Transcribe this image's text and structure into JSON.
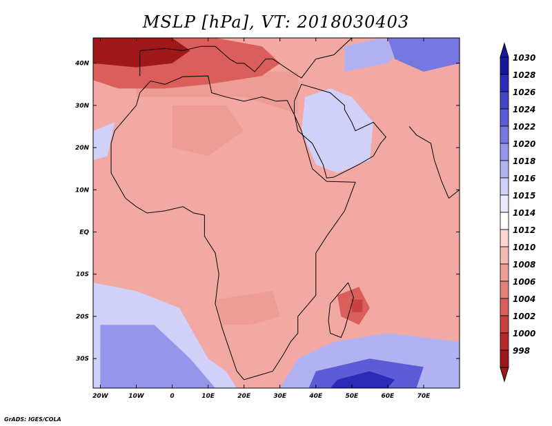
{
  "title": "MSLP [hPa], VT: 2018030403",
  "footer": "GrADS: IGES/COLA",
  "map": {
    "lon_range": [
      -22,
      80
    ],
    "lat_range": [
      -37,
      46
    ],
    "lat_ticks": [
      {
        "lat": 40,
        "label": "40N"
      },
      {
        "lat": 30,
        "label": "30N"
      },
      {
        "lat": 20,
        "label": "20N"
      },
      {
        "lat": 10,
        "label": "10N"
      },
      {
        "lat": 0,
        "label": "EQ"
      },
      {
        "lat": -10,
        "label": "10S"
      },
      {
        "lat": -20,
        "label": "20S"
      },
      {
        "lat": -30,
        "label": "30S"
      }
    ],
    "lon_ticks": [
      {
        "lon": -20,
        "label": "20W"
      },
      {
        "lon": -10,
        "label": "10W"
      },
      {
        "lon": 0,
        "label": "0"
      },
      {
        "lon": 10,
        "label": "10E"
      },
      {
        "lon": 20,
        "label": "20E"
      },
      {
        "lon": 30,
        "label": "30E"
      },
      {
        "lon": 40,
        "label": "40E"
      },
      {
        "lon": 50,
        "label": "50E"
      },
      {
        "lon": 60,
        "label": "60E"
      },
      {
        "lon": 70,
        "label": "70E"
      }
    ],
    "background_color": "#f3a9a3"
  },
  "colorbar": {
    "levels": [
      "1030",
      "1028",
      "1026",
      "1024",
      "1022",
      "1020",
      "1018",
      "1016",
      "1015",
      "1014",
      "1012",
      "1010",
      "1008",
      "1006",
      "1004",
      "1002",
      "1000",
      "998"
    ],
    "colors": [
      "#16169e",
      "#2b2bb8",
      "#4444c8",
      "#5c5cd6",
      "#7777e2",
      "#9595ec",
      "#b2b2f2",
      "#d0d0f8",
      "#ebebfc",
      "#ffffff",
      "#fbd6d3",
      "#f6b9b3",
      "#ee9d96",
      "#e57f79",
      "#da5f5b",
      "#cb413f",
      "#b72a2a",
      "#a11818"
    ]
  },
  "regions": [
    {
      "name": "north-africa-low",
      "color": "#ee9d96",
      "pts": [
        [
          -10,
          32
        ],
        [
          20,
          32
        ],
        [
          35,
          28
        ],
        [
          35,
          38
        ],
        [
          -10,
          38
        ]
      ]
    },
    {
      "name": "mediterranean-low",
      "color": "#da5f5b",
      "pts": [
        [
          -22,
          46
        ],
        [
          12,
          46
        ],
        [
          25,
          44
        ],
        [
          30,
          40
        ],
        [
          25,
          37
        ],
        [
          10,
          35
        ],
        [
          -2,
          34
        ],
        [
          -15,
          34
        ],
        [
          -22,
          36
        ]
      ]
    },
    {
      "name": "iberia-core-low",
      "color": "#a11818",
      "pts": [
        [
          -22,
          46
        ],
        [
          0,
          46
        ],
        [
          5,
          43
        ],
        [
          0,
          40
        ],
        [
          -10,
          39
        ],
        [
          -22,
          40
        ]
      ]
    },
    {
      "name": "sahara-low",
      "color": "#ee9d96",
      "pts": [
        [
          0,
          30
        ],
        [
          15,
          30
        ],
        [
          20,
          24
        ],
        [
          10,
          18
        ],
        [
          0,
          20
        ]
      ]
    },
    {
      "name": "arabia-high",
      "color": "#9595ec",
      "pts": [
        [
          40,
          28
        ],
        [
          48,
          30
        ],
        [
          52,
          26
        ],
        [
          54,
          22
        ],
        [
          50,
          18
        ],
        [
          44,
          17
        ],
        [
          40,
          22
        ]
      ]
    },
    {
      "name": "arabia-high-edge",
      "color": "#d0d0f8",
      "pts": [
        [
          37,
          32
        ],
        [
          44,
          34
        ],
        [
          50,
          32
        ],
        [
          56,
          26
        ],
        [
          55,
          17
        ],
        [
          46,
          14
        ],
        [
          40,
          16
        ],
        [
          36,
          24
        ]
      ]
    },
    {
      "name": "turkey-high",
      "color": "#b2b2f2",
      "pts": [
        [
          48,
          38
        ],
        [
          60,
          40
        ],
        [
          64,
          44
        ],
        [
          58,
          46
        ],
        [
          48,
          44
        ]
      ]
    },
    {
      "name": "iran-high",
      "color": "#7777e2",
      "pts": [
        [
          60,
          46
        ],
        [
          80,
          46
        ],
        [
          80,
          40
        ],
        [
          70,
          38
        ],
        [
          62,
          41
        ]
      ]
    },
    {
      "name": "westafrica-high",
      "color": "#d0d0f8",
      "pts": [
        [
          -22,
          24
        ],
        [
          -16,
          26
        ],
        [
          -18,
          18
        ],
        [
          -22,
          17
        ]
      ]
    },
    {
      "name": "south-atlantic-high",
      "color": "#d0d0f8",
      "pts": [
        [
          -22,
          -12
        ],
        [
          -10,
          -14
        ],
        [
          2,
          -18
        ],
        [
          10,
          -30
        ],
        [
          15,
          -33
        ],
        [
          18,
          -37
        ],
        [
          -22,
          -37
        ]
      ]
    },
    {
      "name": "south-atlantic-core",
      "color": "#9595ec",
      "pts": [
        [
          -20,
          -22
        ],
        [
          -5,
          -22
        ],
        [
          5,
          -30
        ],
        [
          12,
          -37
        ],
        [
          -20,
          -37
        ]
      ]
    },
    {
      "name": "south-indian-high",
      "color": "#b2b2f2",
      "pts": [
        [
          35,
          -30
        ],
        [
          45,
          -26
        ],
        [
          60,
          -24
        ],
        [
          80,
          -26
        ],
        [
          80,
          -37
        ],
        [
          30,
          -37
        ]
      ]
    },
    {
      "name": "south-indian-core",
      "color": "#5c5cd6",
      "pts": [
        [
          40,
          -33
        ],
        [
          55,
          -30
        ],
        [
          70,
          -32
        ],
        [
          68,
          -37
        ],
        [
          38,
          -37
        ]
      ]
    },
    {
      "name": "south-indian-deep",
      "color": "#2b2bb8",
      "pts": [
        [
          46,
          -35
        ],
        [
          55,
          -33
        ],
        [
          62,
          -35
        ],
        [
          60,
          -37
        ],
        [
          44,
          -37
        ]
      ]
    },
    {
      "name": "madagascar-low",
      "color": "#da5f5b",
      "pts": [
        [
          46,
          -15
        ],
        [
          52,
          -13
        ],
        [
          55,
          -18
        ],
        [
          52,
          -22
        ],
        [
          47,
          -20
        ]
      ]
    },
    {
      "name": "madagascar-core",
      "color": "#cb413f",
      "pts": [
        [
          50,
          -16
        ],
        [
          53,
          -16
        ],
        [
          53,
          -19
        ],
        [
          50,
          -19
        ]
      ]
    },
    {
      "name": "south-africa-low",
      "color": "#ee9d96",
      "pts": [
        [
          12,
          -16
        ],
        [
          28,
          -14
        ],
        [
          30,
          -20
        ],
        [
          22,
          -22
        ],
        [
          14,
          -22
        ]
      ]
    }
  ],
  "coastlines": [
    {
      "name": "africa-coast",
      "pts": [
        [
          -17,
          21
        ],
        [
          -16,
          24
        ],
        [
          -13,
          27
        ],
        [
          -10,
          30
        ],
        [
          -9,
          33
        ],
        [
          -6,
          35.8
        ],
        [
          -2,
          35
        ],
        [
          3,
          36.8
        ],
        [
          10,
          37
        ],
        [
          11,
          33
        ],
        [
          15,
          32
        ],
        [
          20,
          31
        ],
        [
          25,
          32
        ],
        [
          29,
          31
        ],
        [
          32,
          31.2
        ],
        [
          34,
          27.8
        ],
        [
          36,
          24
        ],
        [
          38,
          18
        ],
        [
          39,
          15
        ],
        [
          43,
          12
        ],
        [
          51,
          11.8
        ],
        [
          48,
          5
        ],
        [
          43,
          -1
        ],
        [
          40,
          -5
        ],
        [
          40,
          -10
        ],
        [
          40,
          -15
        ],
        [
          35,
          -20
        ],
        [
          35,
          -24
        ],
        [
          33,
          -26
        ],
        [
          31,
          -29
        ],
        [
          28,
          -33
        ],
        [
          20,
          -35
        ],
        [
          18,
          -33
        ],
        [
          16,
          -28
        ],
        [
          14,
          -23
        ],
        [
          12,
          -17
        ],
        [
          13,
          -10
        ],
        [
          12,
          -5
        ],
        [
          9,
          -1
        ],
        [
          9,
          4
        ],
        [
          6,
          4.5
        ],
        [
          3,
          6
        ],
        [
          -2,
          5
        ],
        [
          -7,
          4.5
        ],
        [
          -10,
          6
        ],
        [
          -13,
          8
        ],
        [
          -15,
          11
        ],
        [
          -17,
          14
        ],
        [
          -17,
          21
        ]
      ]
    },
    {
      "name": "madagascar-coast",
      "pts": [
        [
          49,
          -12
        ],
        [
          50.5,
          -15.5
        ],
        [
          50,
          -17
        ],
        [
          48,
          -23
        ],
        [
          47,
          -25
        ],
        [
          44,
          -24
        ],
        [
          43.5,
          -21
        ],
        [
          44,
          -17
        ],
        [
          47,
          -14
        ],
        [
          49,
          -12
        ]
      ]
    },
    {
      "name": "arabia-coast",
      "pts": [
        [
          34,
          28
        ],
        [
          35,
          24
        ],
        [
          39,
          21
        ],
        [
          42,
          16
        ],
        [
          43,
          12.8
        ],
        [
          45,
          13
        ],
        [
          52,
          16
        ],
        [
          56,
          18
        ],
        [
          58,
          21
        ],
        [
          59.5,
          22.5
        ],
        [
          56,
          26
        ],
        [
          51,
          24
        ],
        [
          50,
          26
        ],
        [
          48,
          29
        ],
        [
          48,
          30
        ],
        [
          44,
          33
        ],
        [
          36,
          35
        ],
        [
          34,
          31
        ],
        [
          34,
          28
        ]
      ]
    },
    {
      "name": "europe-coast",
      "pts": [
        [
          -9,
          37
        ],
        [
          -9,
          43
        ],
        [
          -2,
          43.5
        ],
        [
          3,
          43
        ],
        [
          8,
          44
        ],
        [
          12,
          44
        ],
        [
          16,
          41
        ],
        [
          18,
          40
        ],
        [
          20,
          40
        ],
        [
          23,
          38
        ],
        [
          26,
          41
        ],
        [
          28,
          41
        ],
        [
          35,
          37
        ],
        [
          36,
          36.5
        ],
        [
          40,
          41
        ],
        [
          45,
          42
        ],
        [
          50,
          46
        ]
      ]
    },
    {
      "name": "india-coast",
      "pts": [
        [
          66,
          25
        ],
        [
          68,
          23
        ],
        [
          72,
          21
        ],
        [
          73,
          17
        ],
        [
          75,
          12
        ],
        [
          77,
          8
        ],
        [
          80,
          10
        ]
      ]
    }
  ]
}
